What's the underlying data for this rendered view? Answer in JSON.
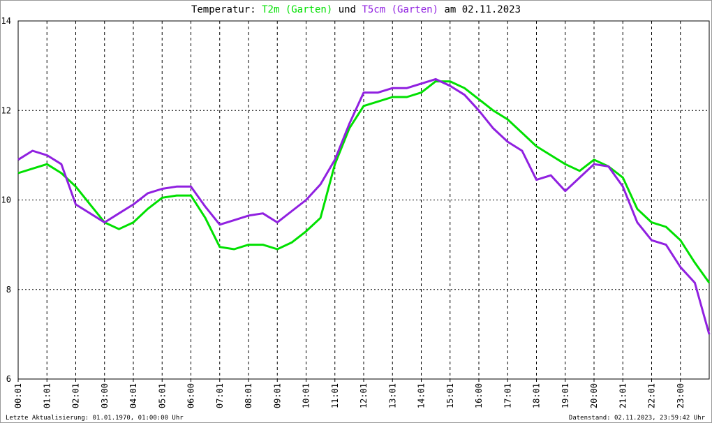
{
  "chart_data": {
    "type": "line",
    "title_prefix": "Temperatur:",
    "title_join": "und",
    "title_suffix": "am 02.11.2023",
    "footer_left": "Letzte Aktualisierung: 01.01.1970, 01:00:00 Uhr",
    "footer_right": "Datenstand: 02.11.2023, 23:59:42 Uhr",
    "x": [
      0,
      0.5,
      1,
      1.5,
      2,
      2.5,
      3,
      3.5,
      4,
      4.5,
      5,
      5.5,
      6,
      6.5,
      7,
      7.5,
      8,
      8.5,
      9,
      9.5,
      10,
      10.5,
      11,
      11.5,
      12,
      12.5,
      13,
      13.5,
      14,
      14.5,
      15,
      15.5,
      16,
      16.5,
      17,
      17.5,
      18,
      18.5,
      19,
      19.5,
      20,
      20.5,
      21,
      21.5,
      22,
      22.5,
      23,
      23.5,
      24
    ],
    "xlim": [
      0,
      24
    ],
    "xticks": [
      {
        "value": 0,
        "label": "00:01"
      },
      {
        "value": 1,
        "label": "01:01"
      },
      {
        "value": 2,
        "label": "02:01"
      },
      {
        "value": 3,
        "label": "03:00"
      },
      {
        "value": 4,
        "label": "04:01"
      },
      {
        "value": 5,
        "label": "05:01"
      },
      {
        "value": 6,
        "label": "06:00"
      },
      {
        "value": 7,
        "label": "07:01"
      },
      {
        "value": 8,
        "label": "08:01"
      },
      {
        "value": 9,
        "label": "09:01"
      },
      {
        "value": 10,
        "label": "10:01"
      },
      {
        "value": 11,
        "label": "11:01"
      },
      {
        "value": 12,
        "label": "12:01"
      },
      {
        "value": 13,
        "label": "13:01"
      },
      {
        "value": 14,
        "label": "14:01"
      },
      {
        "value": 15,
        "label": "15:01"
      },
      {
        "value": 16,
        "label": "16:00"
      },
      {
        "value": 17,
        "label": "17:01"
      },
      {
        "value": 18,
        "label": "18:01"
      },
      {
        "value": 19,
        "label": "19:01"
      },
      {
        "value": 20,
        "label": "20:00"
      },
      {
        "value": 21,
        "label": "21:01"
      },
      {
        "value": 22,
        "label": "22:01"
      },
      {
        "value": 23,
        "label": "23:00"
      }
    ],
    "ylim": [
      6,
      14
    ],
    "yticks": [
      6,
      8,
      10,
      12,
      14
    ],
    "grid": true,
    "series": [
      {
        "name": "T2m (Garten)",
        "color": "#00e000",
        "values": [
          10.6,
          10.7,
          10.8,
          10.6,
          10.3,
          9.9,
          9.5,
          9.35,
          9.5,
          9.8,
          10.05,
          10.1,
          10.1,
          9.6,
          8.95,
          8.9,
          9.0,
          9.0,
          8.9,
          9.05,
          9.3,
          9.6,
          10.8,
          11.6,
          12.1,
          12.2,
          12.3,
          12.3,
          12.4,
          12.65,
          12.65,
          12.5,
          12.25,
          12.0,
          11.8,
          11.5,
          11.2,
          11.0,
          10.8,
          10.65,
          10.9,
          10.75,
          10.5,
          9.8,
          9.5,
          9.4,
          9.1,
          8.6,
          8.15
        ]
      },
      {
        "name": "T5cm (Garten)",
        "color": "#9020e0",
        "values": [
          10.9,
          11.1,
          11.0,
          10.8,
          9.9,
          9.7,
          9.5,
          9.7,
          9.9,
          10.15,
          10.25,
          10.3,
          10.3,
          9.85,
          9.45,
          9.55,
          9.65,
          9.7,
          9.5,
          9.75,
          10.0,
          10.35,
          10.9,
          11.7,
          12.4,
          12.4,
          12.5,
          12.5,
          12.6,
          12.7,
          12.55,
          12.35,
          12.0,
          11.6,
          11.3,
          11.1,
          10.45,
          10.55,
          10.2,
          10.5,
          10.8,
          10.75,
          10.3,
          9.5,
          9.1,
          9.0,
          8.5,
          8.15,
          7.0
        ]
      }
    ]
  }
}
